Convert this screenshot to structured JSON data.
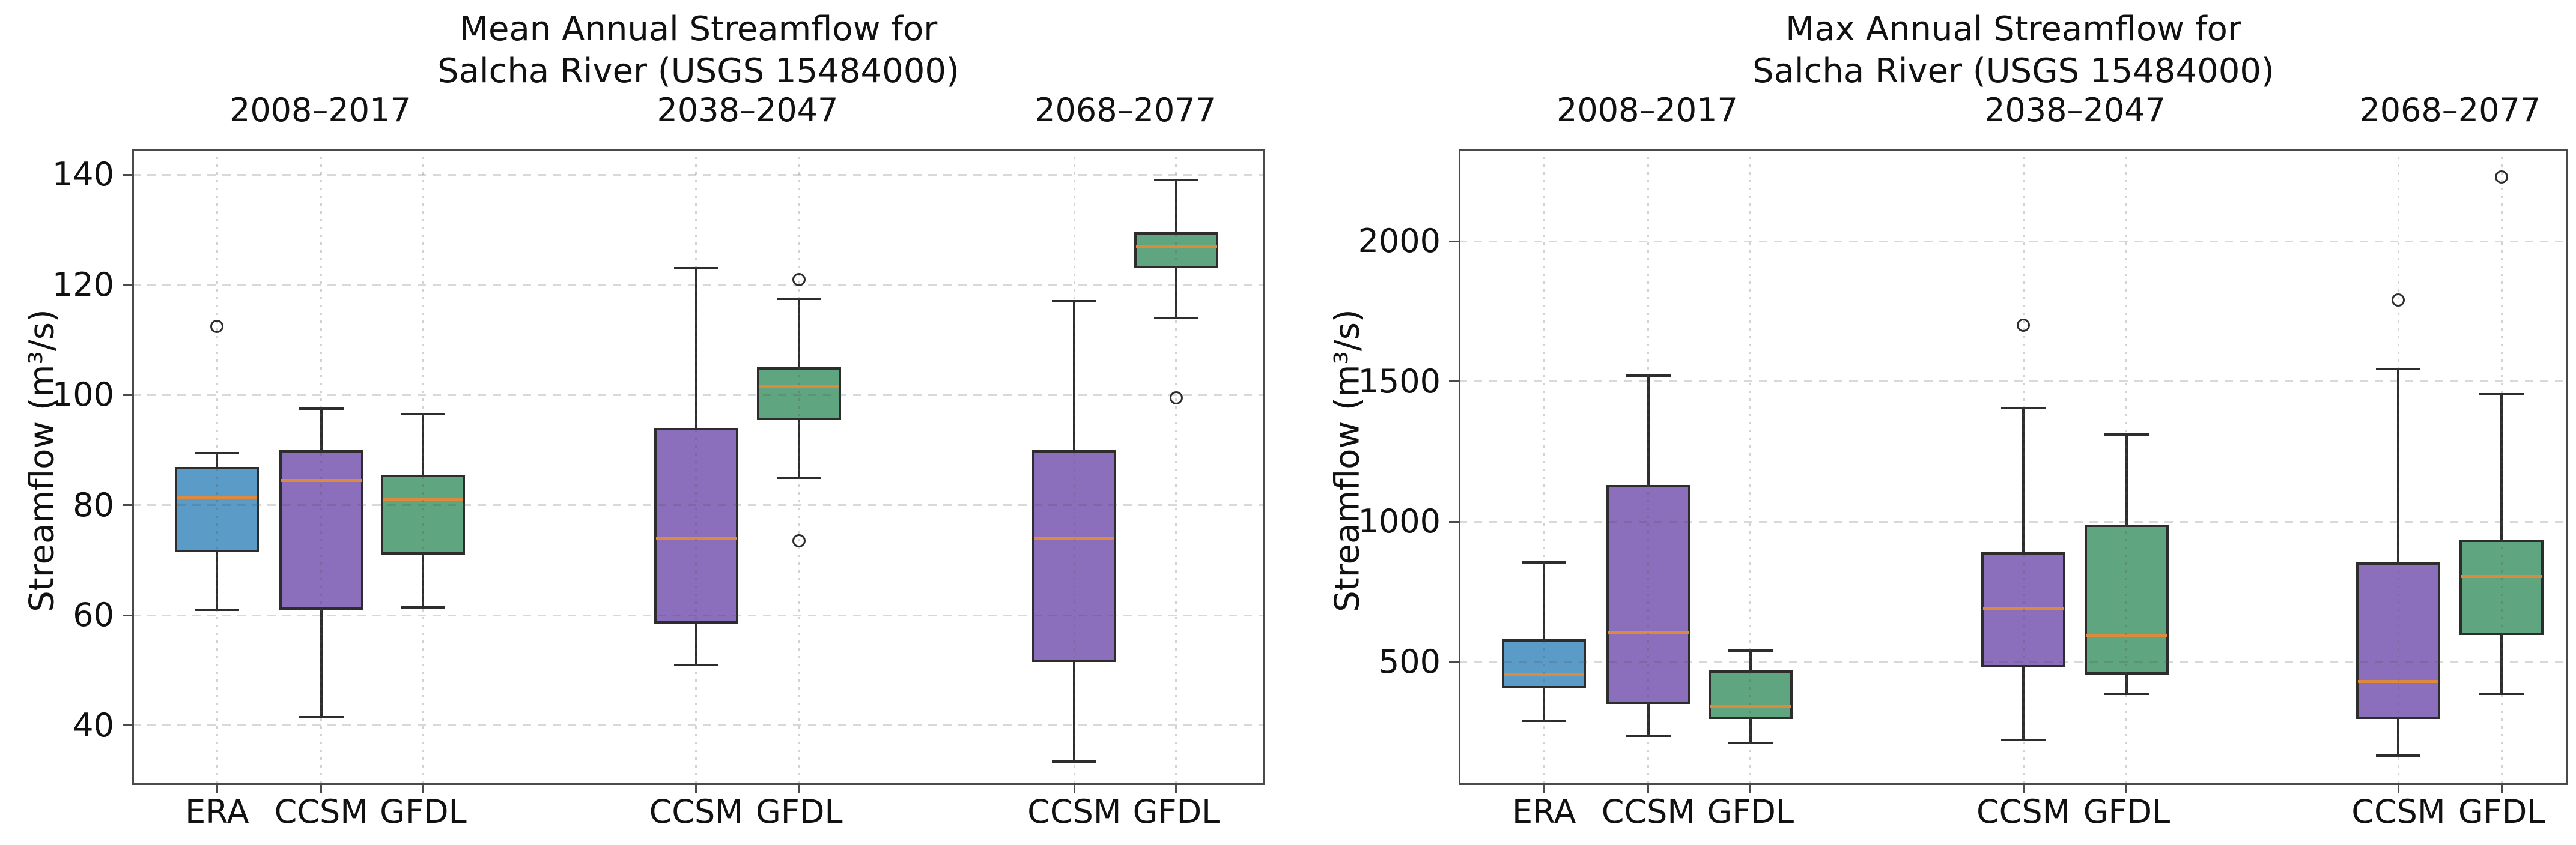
{
  "figure": {
    "description": "Two side-by-side box plot panels comparing modeled streamflow for the Salcha River across three decades"
  },
  "colors": {
    "era_box": "#5B9BC8",
    "ccsm_box": "#8B6FBC",
    "gfdl_box": "#5FA57F",
    "median_line": "#DE8A3C",
    "box_edge": "#2D2D2D",
    "whisker": "#2D2D2D",
    "spine": "#4A4A4A",
    "gridline": "#D9D9D9"
  },
  "chart_data": [
    {
      "type": "boxplot",
      "title": "Mean Annual Streamflow for\nSalcha River (USGS 15484000)",
      "ylabel": "Streamflow (m³/s)",
      "ylim": [
        29.2,
        144.7
      ],
      "yticks": [
        40,
        60,
        80,
        100,
        120,
        140
      ],
      "grid": "horizontal dashed at y-ticks, vertical dotted at each box position",
      "period_labels": [
        "2008–2017",
        "2038–2047",
        "2068–2077"
      ],
      "period_groups": [
        [
          0,
          2
        ],
        [
          3,
          4
        ],
        [
          5,
          6
        ]
      ],
      "boxes": [
        {
          "label": "ERA",
          "x": 0.075,
          "color": "era_box",
          "whislo": 61,
          "q1": 71.5,
          "med": 81.5,
          "q3": 87,
          "whishi": 89.5,
          "fliers": [
            112.5
          ]
        },
        {
          "label": "CCSM",
          "x": 0.167,
          "color": "ccsm_box",
          "whislo": 41.5,
          "q1": 61,
          "med": 84.5,
          "q3": 90,
          "whishi": 97.5,
          "fliers": []
        },
        {
          "label": "GFDL",
          "x": 0.257,
          "color": "gfdl_box",
          "whislo": 61.5,
          "q1": 71,
          "med": 81,
          "q3": 85.5,
          "whishi": 96.5,
          "fliers": []
        },
        {
          "label": "CCSM",
          "x": 0.498,
          "color": "ccsm_box",
          "whislo": 51,
          "q1": 58.5,
          "med": 74,
          "q3": 94,
          "whishi": 123,
          "fliers": []
        },
        {
          "label": "GFDL",
          "x": 0.589,
          "color": "gfdl_box",
          "whislo": 85,
          "q1": 95.5,
          "med": 101.5,
          "q3": 105,
          "whishi": 117.5,
          "fliers": [
            121,
            73.5
          ]
        },
        {
          "label": "CCSM",
          "x": 0.832,
          "color": "ccsm_box",
          "whislo": 33.5,
          "q1": 51.5,
          "med": 74,
          "q3": 90,
          "whishi": 117,
          "fliers": []
        },
        {
          "label": "GFDL",
          "x": 0.922,
          "color": "gfdl_box",
          "whislo": 114,
          "q1": 123,
          "med": 127,
          "q3": 129.5,
          "whishi": 139,
          "fliers": [
            99.5
          ]
        }
      ]
    },
    {
      "type": "boxplot",
      "title": "Max Annual Streamflow for\nSalcha River (USGS 15484000)",
      "ylabel": "Streamflow (m³/s)",
      "ylim": [
        60,
        2330
      ],
      "yticks": [
        500,
        1000,
        1500,
        2000
      ],
      "grid": "horizontal dashed at y-ticks, vertical dotted at each box position",
      "period_labels": [
        "2008–2017",
        "2038–2047",
        "2068–2077"
      ],
      "period_groups": [
        [
          0,
          2
        ],
        [
          3,
          4
        ],
        [
          5,
          6
        ]
      ],
      "boxes": [
        {
          "label": "ERA",
          "x": 0.077,
          "color": "era_box",
          "whislo": 290,
          "q1": 405,
          "med": 455,
          "q3": 580,
          "whishi": 855,
          "fliers": []
        },
        {
          "label": "CCSM",
          "x": 0.171,
          "color": "ccsm_box",
          "whislo": 235,
          "q1": 350,
          "med": 605,
          "q3": 1130,
          "whishi": 1520,
          "fliers": []
        },
        {
          "label": "GFDL",
          "x": 0.263,
          "color": "gfdl_box",
          "whislo": 210,
          "q1": 295,
          "med": 340,
          "q3": 470,
          "whishi": 540,
          "fliers": []
        },
        {
          "label": "CCSM",
          "x": 0.509,
          "color": "ccsm_box",
          "whislo": 220,
          "q1": 480,
          "med": 690,
          "q3": 890,
          "whishi": 1405,
          "fliers": [
            1700
          ]
        },
        {
          "label": "GFDL",
          "x": 0.602,
          "color": "gfdl_box",
          "whislo": 385,
          "q1": 455,
          "med": 595,
          "q3": 990,
          "whishi": 1310,
          "fliers": []
        },
        {
          "label": "CCSM",
          "x": 0.847,
          "color": "ccsm_box",
          "whislo": 165,
          "q1": 295,
          "med": 430,
          "q3": 855,
          "whishi": 1545,
          "fliers": [
            1790
          ]
        },
        {
          "label": "GFDL",
          "x": 0.94,
          "color": "gfdl_box",
          "whislo": 385,
          "q1": 595,
          "med": 805,
          "q3": 935,
          "whishi": 1455,
          "fliers": [
            2230
          ]
        }
      ]
    }
  ]
}
